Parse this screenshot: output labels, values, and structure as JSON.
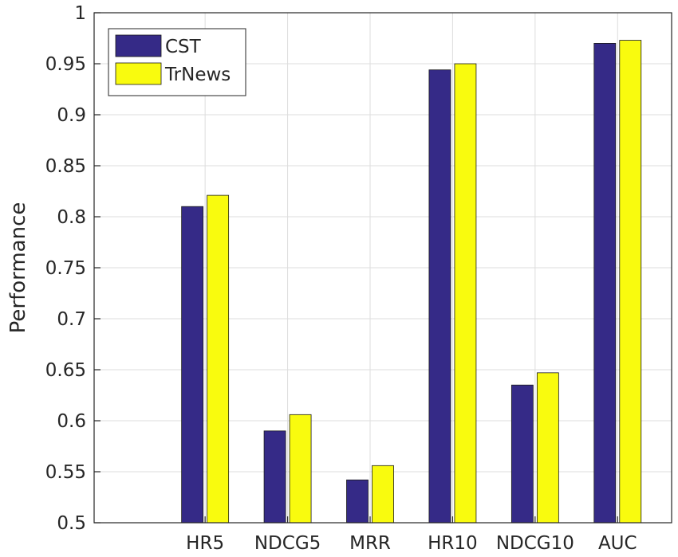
{
  "chart_data": {
    "type": "bar",
    "title": "",
    "xlabel": "",
    "ylabel": "Performance",
    "categories": [
      "HR5",
      "NDCG5",
      "MRR",
      "HR10",
      "NDCG10",
      "AUC"
    ],
    "series": [
      {
        "name": "CST",
        "color": "#352a87",
        "values": [
          0.81,
          0.59,
          0.542,
          0.944,
          0.635,
          0.97
        ]
      },
      {
        "name": "TrNews",
        "color": "#f9fb0e",
        "values": [
          0.821,
          0.606,
          0.556,
          0.95,
          0.647,
          0.973
        ]
      }
    ],
    "ylim": [
      0.5,
      1
    ],
    "yticks": [
      "0.5",
      "0.55",
      "0.6",
      "0.65",
      "0.7",
      "0.75",
      "0.8",
      "0.85",
      "0.9",
      "0.95",
      "1"
    ],
    "grid": true,
    "legend_position": "top-left"
  }
}
